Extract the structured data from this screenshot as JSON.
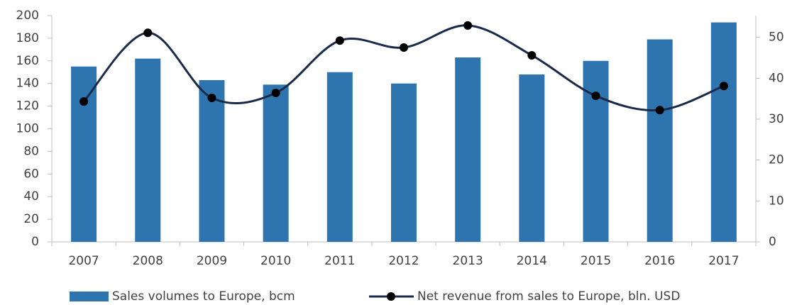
{
  "chart_data": {
    "type": "bar-line",
    "categories": [
      "2007",
      "2008",
      "2009",
      "2010",
      "2011",
      "2012",
      "2013",
      "2014",
      "2015",
      "2016",
      "2017"
    ],
    "series": [
      {
        "name": "Sales volumes to Europe, bcm",
        "type": "bar",
        "color": "#2e75b0",
        "axis": "y",
        "values": [
          155,
          162,
          143,
          139,
          150,
          140,
          163,
          148,
          160,
          179,
          194
        ]
      },
      {
        "name": "Net revenue from sales to Europe, bln. USD",
        "type": "line",
        "color": "#1a2a4a",
        "axis": "y2",
        "values": [
          34.3,
          51.1,
          35.2,
          36.4,
          49.2,
          47.5,
          52.9,
          45.6,
          35.7,
          32.2,
          38.1
        ]
      }
    ],
    "ylim": [
      0,
      200
    ],
    "yticks": [
      0,
      20,
      40,
      60,
      80,
      100,
      120,
      140,
      160,
      180,
      200
    ],
    "y2lim": [
      0,
      55.3
    ],
    "y2ticks": [
      0,
      10,
      20,
      30,
      40,
      50
    ],
    "legend": "bottom"
  }
}
